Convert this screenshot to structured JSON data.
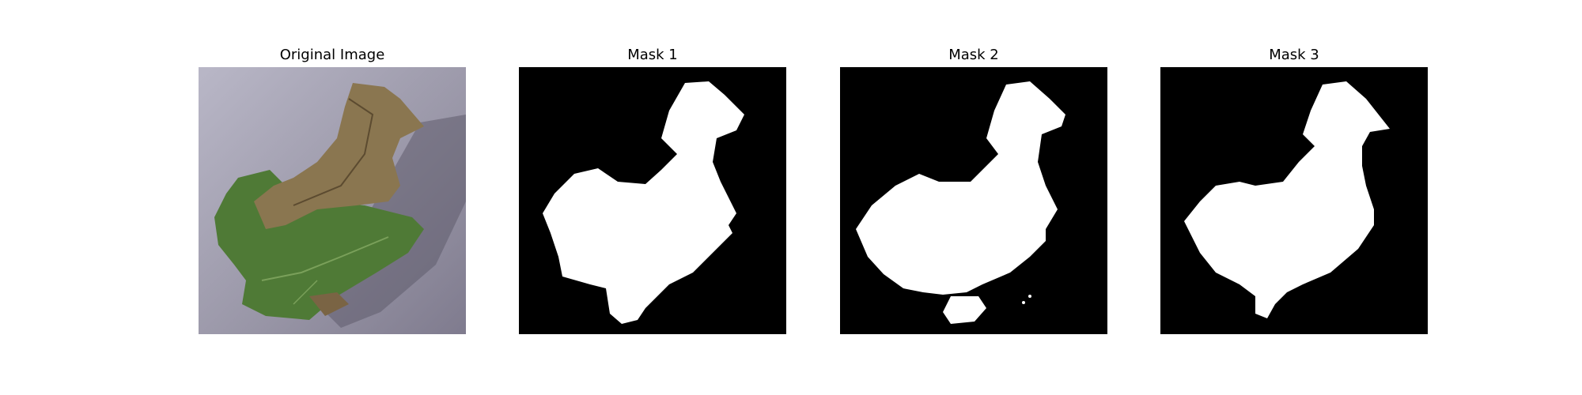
{
  "figure": {
    "panels": [
      {
        "title": "Original Image",
        "kind": "photo"
      },
      {
        "title": "Mask 1",
        "kind": "mask"
      },
      {
        "title": "Mask 2",
        "kind": "mask"
      },
      {
        "title": "Mask 3",
        "kind": "mask"
      }
    ]
  },
  "colors": {
    "background": "#ffffff",
    "mask_fill": "#ffffff",
    "mask_background": "#000000",
    "photo_surface": "#9a97a8",
    "leaf_green": "#4f7a36",
    "leaf_brown": "#8a7650"
  }
}
